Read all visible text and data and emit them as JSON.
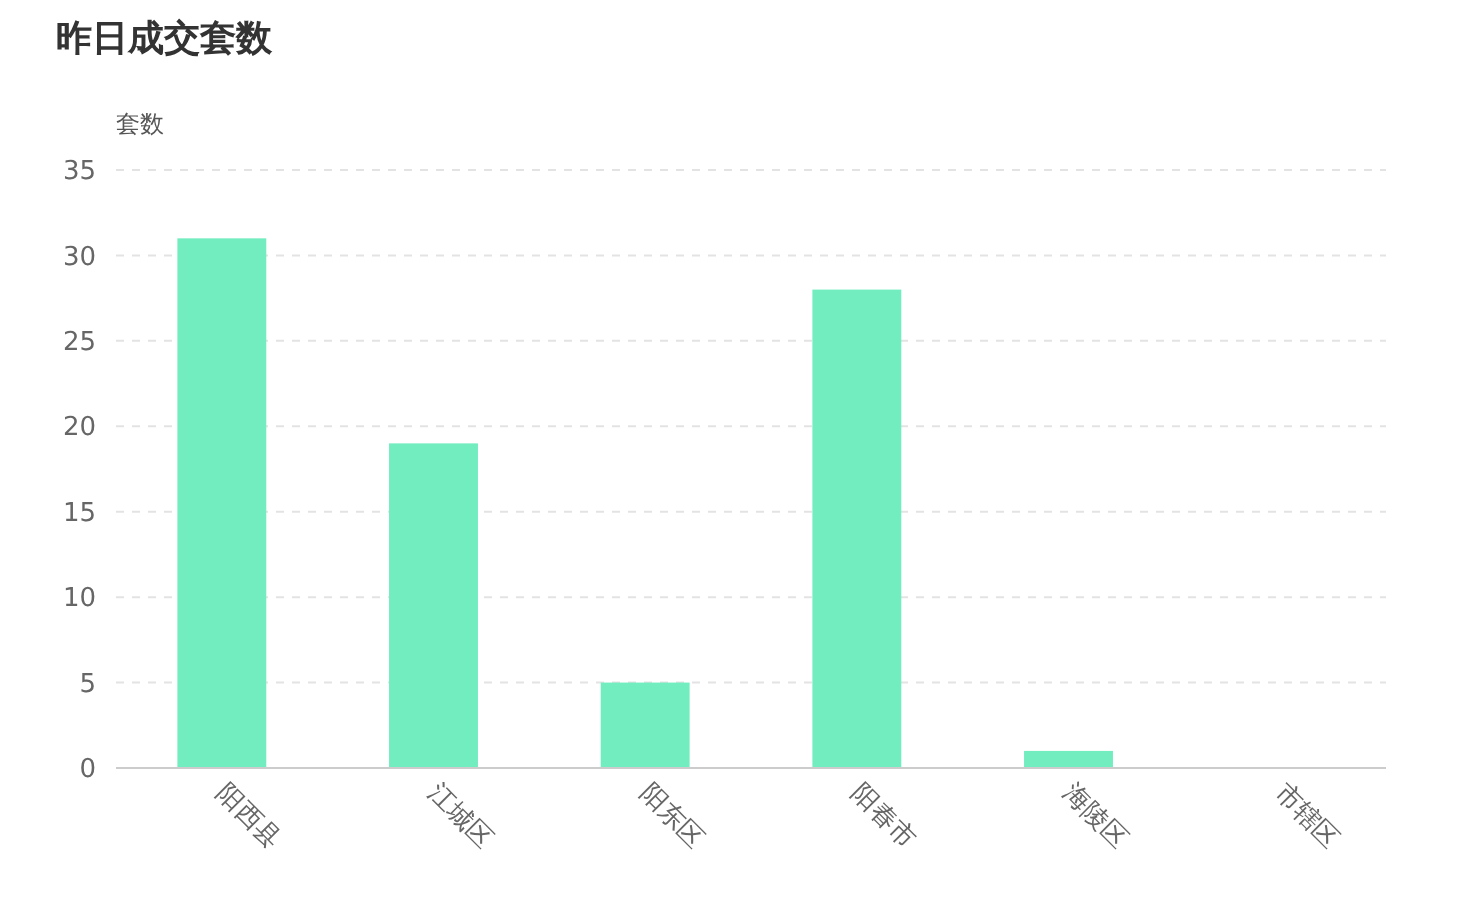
{
  "chart_data": {
    "type": "bar",
    "title": "昨日成交套数",
    "ylabel": "套数",
    "categories": [
      "阳西县",
      "江城区",
      "阳东区",
      "阳春市",
      "海陵区",
      "市辖区"
    ],
    "values": [
      31,
      19,
      5,
      28,
      1,
      0
    ],
    "color": "#72edc0",
    "ylim": [
      0,
      35
    ],
    "yticks": [
      0,
      5,
      10,
      15,
      20,
      25,
      30,
      35
    ],
    "grid": "y"
  }
}
